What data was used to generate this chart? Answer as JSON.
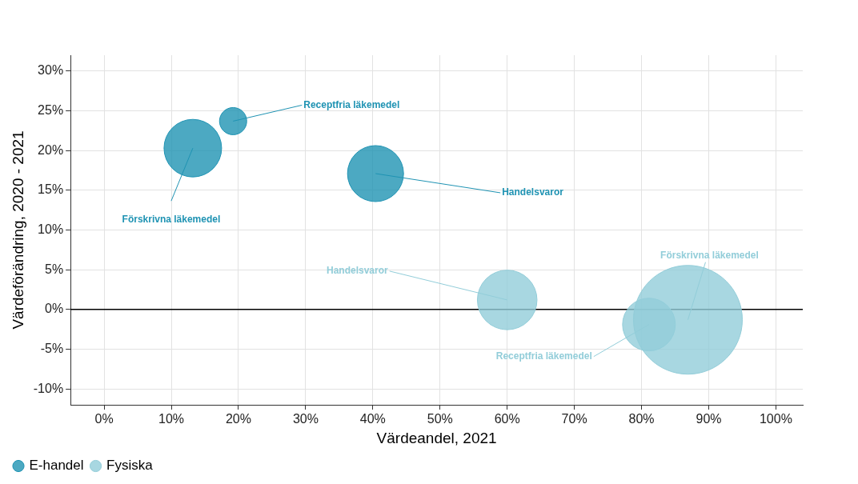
{
  "chart_data": {
    "type": "bubble",
    "xlabel": "Värdeandel, 2021",
    "ylabel": "Värdeförändring, 2020 - 2021",
    "series": [
      {
        "name": "E-handel",
        "color": "#1f93b3",
        "x": [
          13.2,
          19.2,
          40.4
        ],
        "values": [
          20.3,
          23.7,
          17.1
        ],
        "sizes": [
          0.28,
          0.0625,
          0.265
        ]
      },
      {
        "name": "Fysiska",
        "color": "#92cdd9",
        "x": [
          60.0,
          81.1,
          86.9
        ],
        "values": [
          1.2,
          -1.9,
          -1.3
        ],
        "sizes": [
          0.3,
          0.235,
          1
        ]
      }
    ],
    "xlim": [
      -5,
      104
    ],
    "ylim": [
      -12,
      32
    ],
    "xticks": [
      {
        "value": 0,
        "label": "0%"
      },
      {
        "value": 10,
        "label": "10%"
      },
      {
        "value": 20,
        "label": "20%"
      },
      {
        "value": 30,
        "label": "30%"
      },
      {
        "value": 40,
        "label": "40%"
      },
      {
        "value": 50,
        "label": "50%"
      },
      {
        "value": 60,
        "label": "60%"
      },
      {
        "value": 70,
        "label": "70%"
      },
      {
        "value": 80,
        "label": "80%"
      },
      {
        "value": 90,
        "label": "90%"
      },
      {
        "value": 100,
        "label": "100%"
      }
    ],
    "yticks": [
      {
        "value": -10,
        "label": "-10%"
      },
      {
        "value": -5,
        "label": "-5%"
      },
      {
        "value": 0,
        "label": "0%"
      },
      {
        "value": 5,
        "label": "5%"
      },
      {
        "value": 10,
        "label": "10%"
      },
      {
        "value": 15,
        "label": "15%"
      },
      {
        "value": 20,
        "label": "20%"
      },
      {
        "value": 25,
        "label": "25%"
      },
      {
        "value": 30,
        "label": "30%"
      }
    ],
    "ref_lines": [
      {
        "axis": "y",
        "value": 0,
        "color": "#000000"
      }
    ],
    "annotations": [
      {
        "text": "Receptfria läkemedel",
        "x": 19.2,
        "y": 23.7
      },
      {
        "text": "Förskrivna läkemedel",
        "x": 13.2,
        "y": 20.3
      },
      {
        "text": "Handelsvaror",
        "x": 40.4,
        "y": 17.1
      },
      {
        "text": "Handelsvaror",
        "x": 60.0,
        "y": 1.2
      },
      {
        "text": "Receptfria läkemedel",
        "x": 81.1,
        "y": -1.9
      },
      {
        "text": "Förskrivna läkemedel",
        "x": 86.9,
        "y": -1.3
      }
    ],
    "grid": true,
    "legend": "bottom left"
  }
}
